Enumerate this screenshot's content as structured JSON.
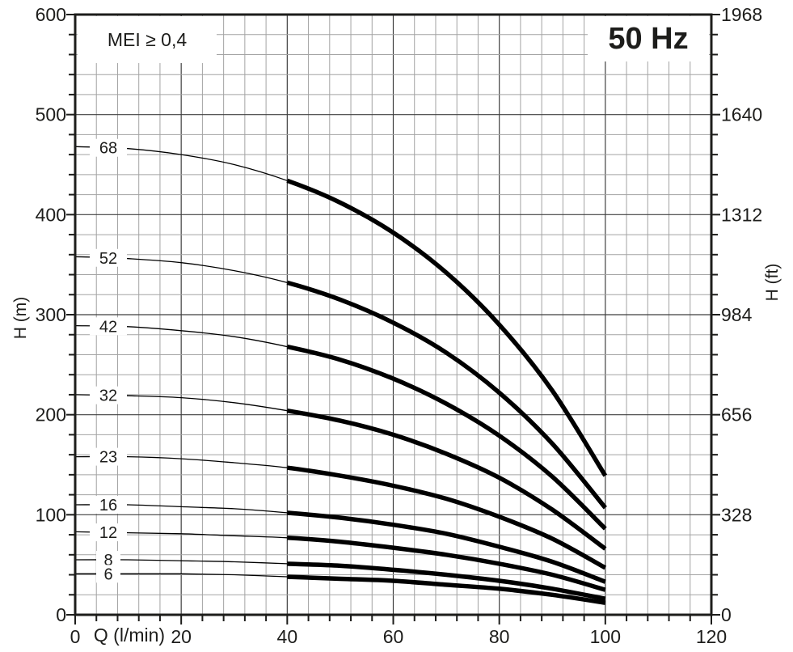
{
  "labels": {
    "frequency": "50 Hz",
    "mei": "MEI ≥ 0,4"
  },
  "chart_data": {
    "type": "line",
    "title": "Pump performance curves H vs Q, 50 Hz",
    "grid": true,
    "thick_from_x": 40,
    "x": [
      0,
      10,
      20,
      30,
      40,
      50,
      60,
      70,
      80,
      90,
      100
    ],
    "series": [
      {
        "name": "68",
        "values": [
          468,
          466,
          460,
          450,
          434,
          412,
          382,
          342,
          290,
          224,
          139
        ]
      },
      {
        "name": "52",
        "values": [
          358,
          356,
          352,
          344,
          332,
          315,
          292,
          262,
          222,
          171,
          107
        ]
      },
      {
        "name": "42",
        "values": [
          289,
          288,
          284,
          278,
          268,
          255,
          236,
          211,
          179,
          138,
          86
        ]
      },
      {
        "name": "32",
        "values": [
          220,
          219,
          217,
          212,
          204,
          194,
          180,
          161,
          137,
          105,
          66
        ]
      },
      {
        "name": "23",
        "values": [
          158,
          158,
          156,
          152,
          147,
          139,
          129,
          116,
          98,
          76,
          47
        ]
      },
      {
        "name": "16",
        "values": [
          110,
          110,
          108,
          106,
          102,
          97,
          90,
          81,
          68,
          53,
          33
        ]
      },
      {
        "name": "12",
        "values": [
          83,
          82,
          81,
          79,
          77,
          73,
          67,
          60,
          51,
          40,
          25
        ]
      },
      {
        "name": "8",
        "values": [
          55,
          55,
          54,
          53,
          51,
          49,
          45,
          40,
          34,
          26,
          16
        ]
      },
      {
        "name": "6",
        "values": [
          41,
          41,
          41,
          40,
          38,
          36,
          34,
          30,
          26,
          20,
          12
        ]
      }
    ],
    "axes": {
      "bottom": {
        "label": "Q (l/min)",
        "min": 0,
        "max": 120,
        "major_step": 20,
        "minor_step": 4,
        "major_ticks": [
          0,
          20,
          40,
          60,
          80,
          100,
          120
        ]
      },
      "left": {
        "label": "H (m)",
        "min": 0,
        "max": 600,
        "major_step": 100,
        "minor_step": 20,
        "major_ticks": [
          0,
          100,
          200,
          300,
          400,
          500,
          600
        ]
      },
      "right": {
        "label": "H (ft)",
        "min": 0,
        "max": 1968,
        "major_ticks": [
          0,
          328,
          656,
          984,
          1312,
          1640,
          1968
        ]
      }
    },
    "colors": {
      "curve": "#000000",
      "border": "#1d1d1b",
      "grid_major": "#3f3f3f",
      "grid_minor": "#a3a3a3",
      "text": "#1d1d1b"
    }
  }
}
